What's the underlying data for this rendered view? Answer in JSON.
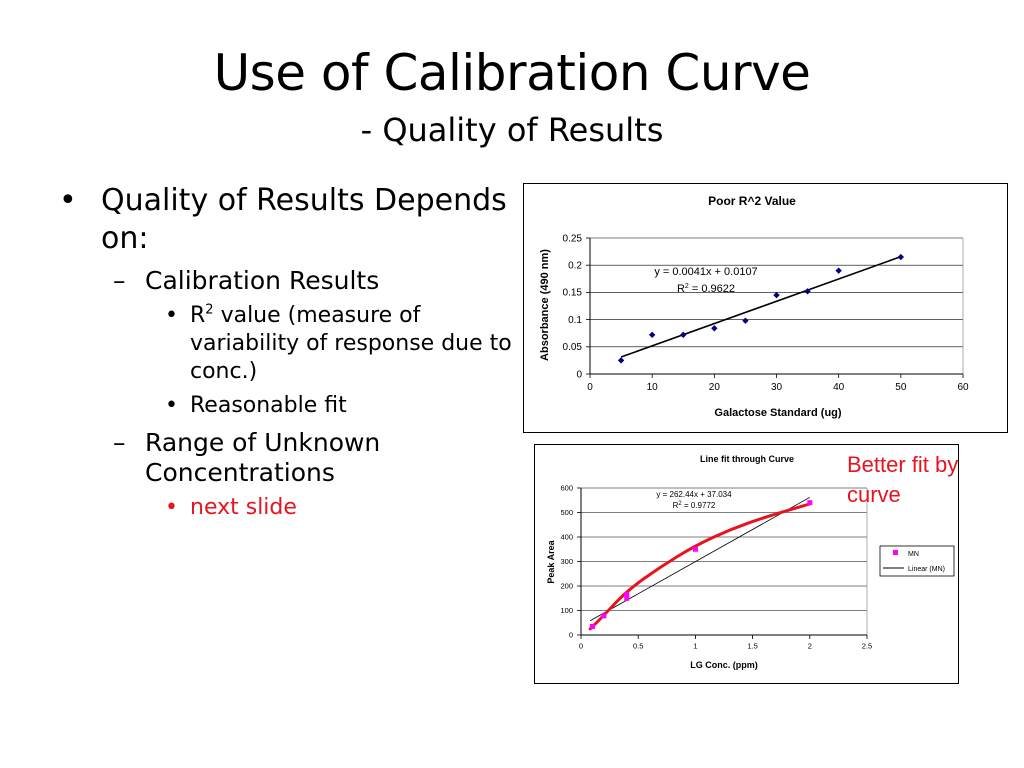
{
  "slide": {
    "title": "Use of Calibration Curve",
    "subtitle": "- Quality of Results"
  },
  "bullets": {
    "l1": "Quality of Results Depends on:",
    "calibration": "Calibration Results",
    "r2_prefix": "R",
    "r2_sup": "2",
    "r2_text": " value (measure of variability of response due to conc.)",
    "fit": "Reasonable fit",
    "range": "Range of Unknown Concentrations",
    "next": "next slide"
  },
  "note": "Better fit by curve",
  "colors": {
    "accent_red": "#e6141e",
    "marker_navy": "#000080",
    "marker_magenta": "#ff00ff",
    "trendline": "#000000"
  },
  "chart_data": [
    {
      "type": "scatter",
      "title": "Poor R^2 Value",
      "xlabel": "Galactose Standard (ug)",
      "ylabel": "Absorbance (490 nm)",
      "xlim": [
        0,
        60
      ],
      "ylim": [
        0,
        0.25
      ],
      "x_ticks": [
        "0",
        "10",
        "20",
        "30",
        "40",
        "50",
        "60"
      ],
      "y_ticks": [
        "0",
        "0.05",
        "0.1",
        "0.15",
        "0.2",
        "0.25"
      ],
      "grid": true,
      "points": [
        {
          "x": 5,
          "y": 0.025
        },
        {
          "x": 10,
          "y": 0.072
        },
        {
          "x": 15,
          "y": 0.072
        },
        {
          "x": 20,
          "y": 0.084
        },
        {
          "x": 25,
          "y": 0.098
        },
        {
          "x": 30,
          "y": 0.145
        },
        {
          "x": 35,
          "y": 0.152
        },
        {
          "x": 40,
          "y": 0.19
        },
        {
          "x": 50,
          "y": 0.215
        }
      ],
      "trendline": {
        "slope": 0.0041,
        "intercept": 0.0107,
        "x_range": [
          5,
          50
        ]
      },
      "equation": "y = 0.0041x + 0.0107",
      "r2_prefix": "R",
      "r2_sup": "2",
      "r2_value": " = 0.9622"
    },
    {
      "type": "scatter",
      "title": "Line fit through Curve",
      "xlabel": "LG Conc. (ppm)",
      "ylabel": "Peak Area",
      "xlim": [
        0,
        2.5
      ],
      "ylim": [
        0,
        600
      ],
      "x_ticks": [
        "0",
        "0.5",
        "1",
        "1.5",
        "2",
        "2.5"
      ],
      "y_ticks": [
        "0",
        "100",
        "200",
        "300",
        "400",
        "500",
        "600"
      ],
      "grid": true,
      "points": [
        {
          "x": 0.1,
          "y": 35
        },
        {
          "x": 0.2,
          "y": 78
        },
        {
          "x": 0.4,
          "y": 150
        },
        {
          "x": 0.4,
          "y": 165
        },
        {
          "x": 1.0,
          "y": 350
        },
        {
          "x": 2.0,
          "y": 540
        }
      ],
      "trendline": {
        "slope": 262.44,
        "intercept": 37.034,
        "x_range": [
          0.08,
          2.0
        ]
      },
      "curve": [
        {
          "x": 0.08,
          "y": 25
        },
        {
          "x": 0.2,
          "y": 80
        },
        {
          "x": 0.4,
          "y": 180
        },
        {
          "x": 0.7,
          "y": 280
        },
        {
          "x": 1.0,
          "y": 365
        },
        {
          "x": 1.3,
          "y": 430
        },
        {
          "x": 1.6,
          "y": 480
        },
        {
          "x": 2.0,
          "y": 535
        }
      ],
      "equation": "y = 262.44x + 37.034",
      "r2_prefix": "R",
      "r2_sup": "2",
      "r2_value": " = 0.9772",
      "legend": [
        "MN",
        "Linear (MN)"
      ],
      "legend_position": "right"
    }
  ]
}
